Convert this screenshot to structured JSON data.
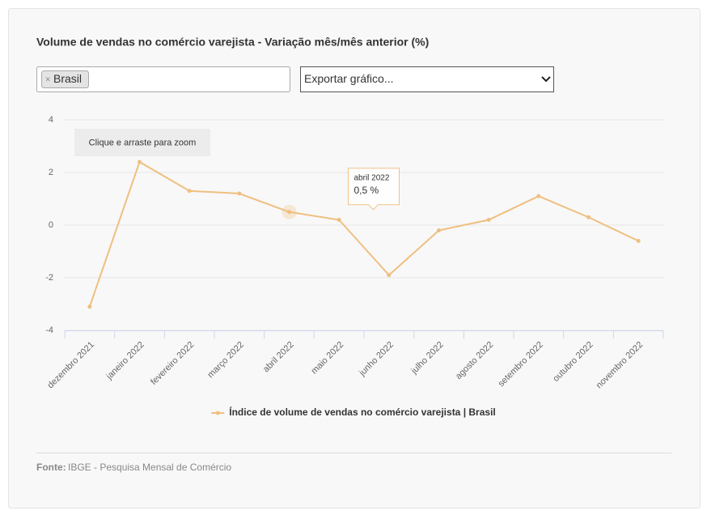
{
  "chart_data": {
    "type": "line",
    "title": "Volume de vendas no comércio varejista - Variação mês/mês anterior (%)",
    "filter_chip": "Brasil",
    "filter_remove": "×",
    "export_select": "Exportar gráfico...",
    "zoom_hint": "Clique e arraste para zoom",
    "categories": [
      "dezembro 2021",
      "janeiro 2022",
      "fevereiro 2022",
      "março 2022",
      "abril 2022",
      "maio 2022",
      "junho 2022",
      "julho 2022",
      "agosto 2022",
      "setembro 2022",
      "outubro 2022",
      "novembro 2022"
    ],
    "series": [
      {
        "name": "Índice de volume de vendas no comércio varejista | Brasil",
        "color": "#efbf80",
        "values": [
          -3.1,
          2.4,
          1.3,
          1.2,
          0.5,
          0.2,
          -1.9,
          -0.2,
          0.2,
          1.1,
          0.3,
          -0.6
        ],
        "value_labels": [
          null,
          null,
          null,
          null,
          "0,5 %",
          null,
          null,
          null,
          null,
          null,
          null,
          null
        ]
      }
    ],
    "ylim": [
      -4,
      4
    ],
    "yticks": [
      -4,
      -2,
      0,
      2,
      4
    ],
    "grid": true,
    "legend": "bottom",
    "source_label": "Fonte:",
    "source": "IBGE - Pesquisa Mensal de Comércio"
  }
}
